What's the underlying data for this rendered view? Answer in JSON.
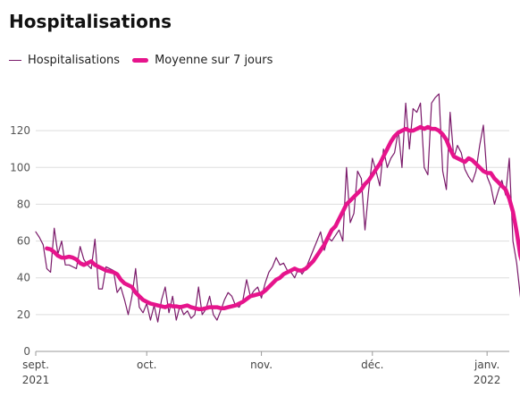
{
  "chart_data": {
    "type": "line",
    "title": "Hospitalisations",
    "legend": {
      "placement": "top-left"
    },
    "grid": true,
    "ylim": [
      0,
      140
    ],
    "yticks": [
      0,
      20,
      40,
      60,
      80,
      100,
      120
    ],
    "xticks": [
      {
        "date": "2021-09-01",
        "line1": "sept.",
        "line2": "2021"
      },
      {
        "date": "2021-10-01",
        "line1": "oct.",
        "line2": ""
      },
      {
        "date": "2021-11-01",
        "line1": "nov.",
        "line2": ""
      },
      {
        "date": "2021-12-01",
        "line1": "déc.",
        "line2": ""
      },
      {
        "date": "2022-01-01",
        "line1": "janv.",
        "line2": "2022"
      }
    ],
    "x_start": "2021-09-01",
    "x_end": "2022-01-07",
    "colors": {
      "daily": "#7a1a6a",
      "average": "#e6148c",
      "grid": "#dddddd"
    },
    "series": [
      {
        "name": "Hospitalisations",
        "key": "daily",
        "start_date": "2021-09-01",
        "values": [
          65,
          62,
          58,
          45,
          43,
          67,
          53,
          60,
          47,
          47,
          46,
          45,
          57,
          50,
          47,
          45,
          61,
          34,
          34,
          46,
          45,
          44,
          32,
          35,
          28,
          20,
          30,
          45,
          24,
          21,
          26,
          17,
          25,
          16,
          28,
          35,
          21,
          30,
          17,
          25,
          20,
          22,
          18,
          20,
          35,
          20,
          23,
          30,
          20,
          17,
          22,
          28,
          32,
          30,
          25,
          24,
          28,
          39,
          30,
          33,
          35,
          29,
          37,
          43,
          46,
          51,
          47,
          48,
          44,
          43,
          40,
          45,
          42,
          45,
          50,
          55,
          60,
          65,
          55,
          62,
          60,
          63,
          66,
          60,
          100,
          70,
          75,
          98,
          94,
          66,
          88,
          105,
          98,
          90,
          110,
          100,
          105,
          108,
          120,
          100,
          135,
          110,
          132,
          130,
          135,
          100,
          96,
          135,
          138,
          140,
          98,
          88,
          130,
          105,
          112,
          108,
          99,
          95,
          92,
          98,
          112,
          123,
          95,
          90,
          80,
          87,
          93,
          85,
          105,
          60,
          48,
          30,
          10
        ]
      },
      {
        "name": "Moyenne sur 7 jours",
        "key": "average",
        "start_date": "2021-09-04",
        "values": [
          56,
          55.5,
          54,
          52,
          51,
          51,
          51.5,
          51,
          50,
          48,
          47,
          48,
          49,
          47,
          46,
          45,
          44,
          43.5,
          43,
          42,
          39,
          37,
          36,
          35,
          32,
          30,
          28,
          27,
          26,
          25.5,
          25,
          24.5,
          24,
          25,
          24.5,
          24.5,
          24,
          24.5,
          25,
          24,
          23.5,
          23,
          23,
          23.5,
          24,
          24,
          24,
          23.5,
          23.5,
          24,
          24.5,
          25,
          26,
          27,
          28.5,
          30,
          30.5,
          31,
          31.5,
          33,
          35,
          37,
          39,
          40,
          42,
          43,
          44,
          45,
          44,
          44,
          45,
          47,
          49,
          52,
          55,
          58,
          62,
          66,
          68,
          72,
          76,
          80,
          82,
          84,
          86,
          88,
          91,
          93,
          96,
          99,
          102,
          106,
          110,
          114,
          117,
          119,
          120,
          121,
          120,
          120,
          121,
          122,
          121,
          122,
          121,
          121,
          120,
          118,
          115,
          110,
          106,
          105,
          104,
          103,
          105,
          104,
          102,
          100,
          98,
          97,
          97,
          94,
          92,
          90,
          88,
          83,
          76,
          65,
          52,
          45
        ]
      }
    ]
  }
}
